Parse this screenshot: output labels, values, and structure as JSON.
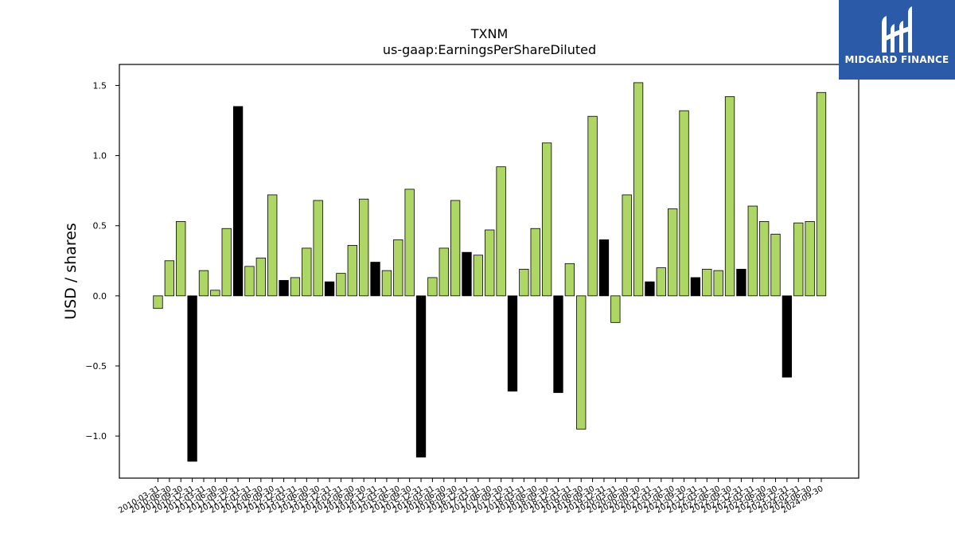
{
  "chart_data": {
    "type": "bar",
    "title": "TXNM",
    "subtitle": "us-gaap:EarningsPerShareDiluted",
    "ylabel": "USD / shares",
    "xlabel": "",
    "ylim": [
      -1.3,
      1.65
    ],
    "yticks": [
      -1.0,
      -0.5,
      0.0,
      0.5,
      1.0,
      1.5
    ],
    "ytick_labels": [
      "−1.0",
      "−0.5",
      "0.0",
      "0.5",
      "1.0",
      "1.5"
    ],
    "colors": {
      "quarterly": "#aed665",
      "annual": "#000000"
    },
    "categories": [
      "2010-03-31",
      "2010-06-30",
      "2010-09-30",
      "2010-12-31",
      "2011-03-31",
      "2011-06-30",
      "2011-09-30",
      "2011-12-31",
      "2012-03-31",
      "2012-06-30",
      "2012-09-30",
      "2012-12-31",
      "2013-03-31",
      "2013-06-30",
      "2013-09-30",
      "2013-12-31",
      "2014-03-31",
      "2014-06-30",
      "2014-09-30",
      "2014-12-31",
      "2015-03-31",
      "2015-06-30",
      "2015-09-30",
      "2015-12-31",
      "2016-03-31",
      "2016-06-30",
      "2016-09-30",
      "2016-12-31",
      "2017-03-31",
      "2017-06-30",
      "2017-09-30",
      "2017-12-31",
      "2018-03-31",
      "2018-06-30",
      "2018-09-30",
      "2018-12-31",
      "2019-03-31",
      "2019-06-30",
      "2019-09-30",
      "2019-12-31",
      "2020-03-31",
      "2020-06-30",
      "2020-09-30",
      "2020-12-31",
      "2021-03-31",
      "2021-06-30",
      "2021-09-30",
      "2021-12-31",
      "2022-03-31",
      "2022-06-30",
      "2022-09-30",
      "2022-12-31",
      "2023-03-31",
      "2023-06-30",
      "2023-09-30",
      "2023-12-31",
      "2024-03-31",
      "2024-06-30",
      "2024-09-30"
    ],
    "values": [
      -0.09,
      0.25,
      0.53,
      -1.18,
      0.18,
      0.04,
      0.48,
      1.35,
      0.21,
      0.27,
      0.72,
      0.11,
      0.13,
      0.34,
      0.68,
      0.1,
      0.16,
      0.36,
      0.69,
      0.24,
      0.18,
      0.4,
      0.76,
      -1.15,
      0.13,
      0.34,
      0.68,
      0.31,
      0.29,
      0.47,
      0.92,
      -0.68,
      0.19,
      0.48,
      1.09,
      -0.69,
      0.23,
      -0.95,
      1.28,
      0.4,
      -0.19,
      0.72,
      1.52,
      0.1,
      0.2,
      0.62,
      1.32,
      0.13,
      0.19,
      0.18,
      1.42,
      0.19,
      0.64,
      0.53,
      0.44,
      -0.58,
      0.52,
      0.53,
      1.45
    ],
    "is_annual": [
      false,
      false,
      false,
      true,
      false,
      false,
      false,
      true,
      false,
      false,
      false,
      true,
      false,
      false,
      false,
      true,
      false,
      false,
      false,
      true,
      false,
      false,
      false,
      true,
      false,
      false,
      false,
      true,
      false,
      false,
      false,
      true,
      false,
      false,
      false,
      true,
      false,
      false,
      false,
      true,
      false,
      false,
      false,
      true,
      false,
      false,
      false,
      true,
      false,
      false,
      false,
      true,
      false,
      false,
      false,
      true,
      false,
      false,
      false
    ]
  },
  "logo": {
    "text": "MIDGARD FINANCE",
    "background": "#2a5aa8"
  }
}
